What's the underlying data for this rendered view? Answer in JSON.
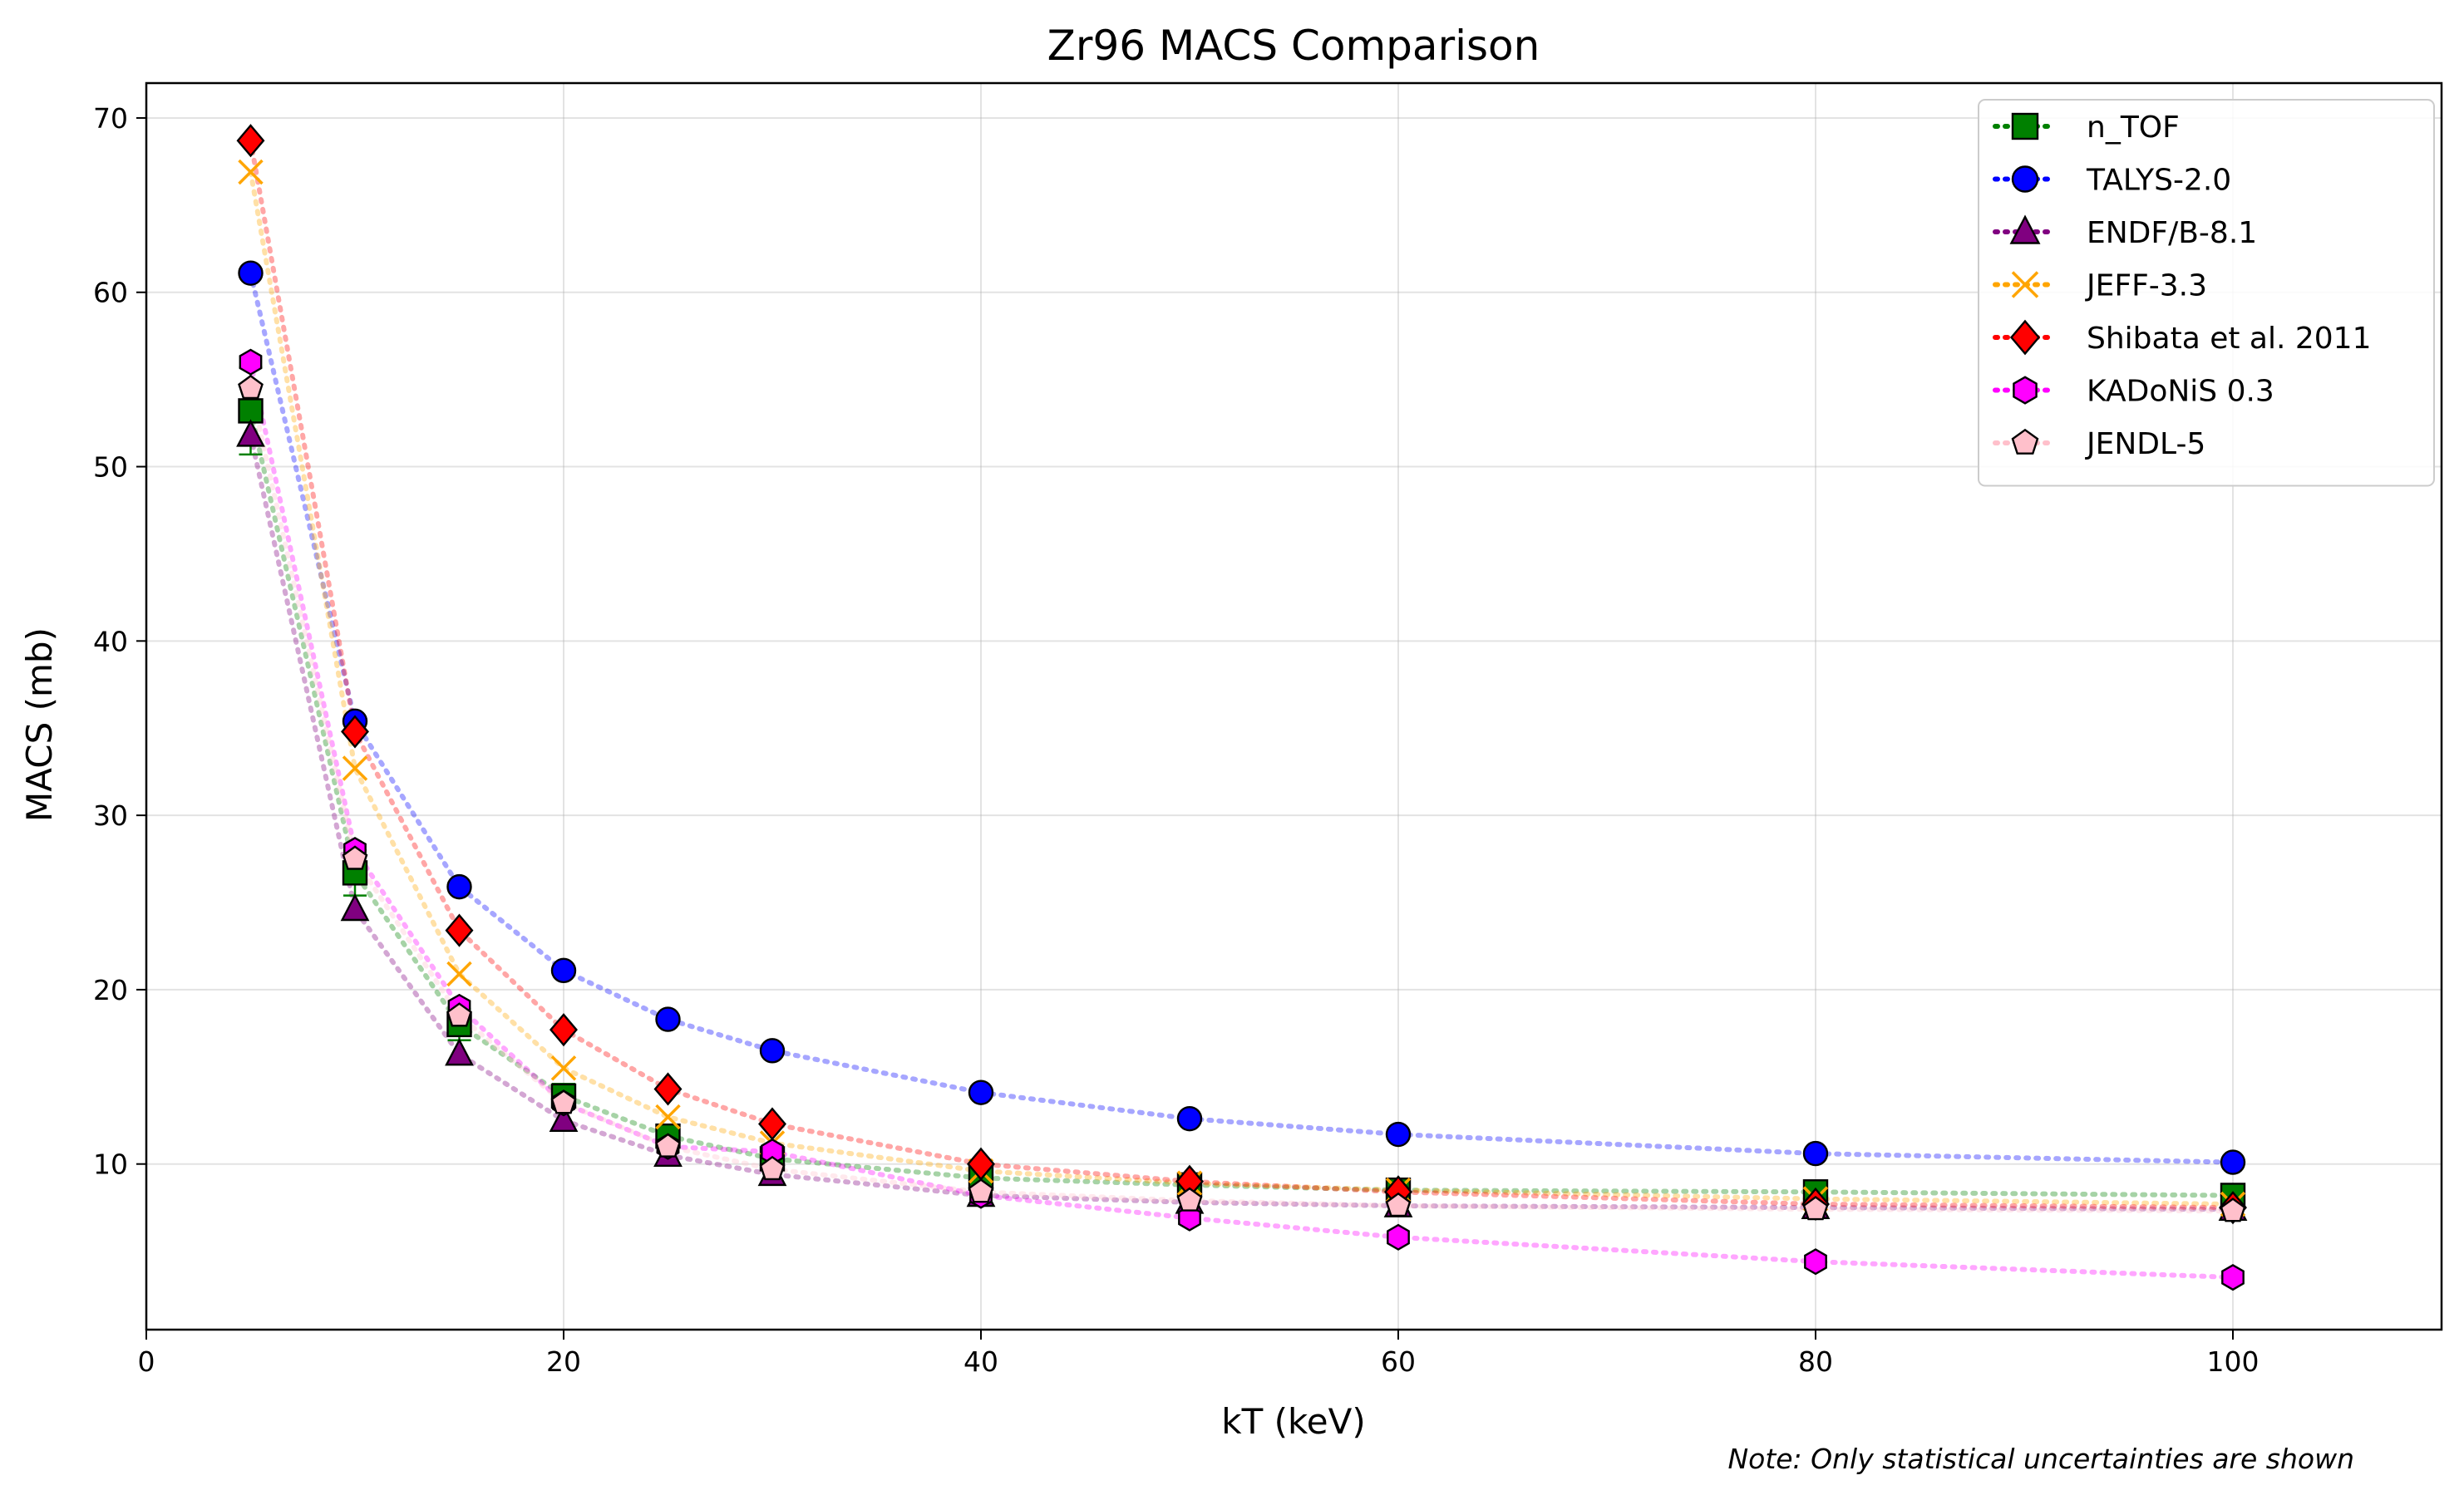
{
  "chart_data": {
    "type": "scatter",
    "title": "Zr96 MACS Comparison",
    "xlabel": "kT (keV)",
    "ylabel": "MACS (mb)",
    "xlim": [
      0,
      110
    ],
    "ylim": [
      0.5,
      72
    ],
    "xticks": [
      0,
      20,
      40,
      60,
      80,
      100
    ],
    "yticks": [
      10,
      20,
      30,
      40,
      50,
      60,
      70
    ],
    "grid": true,
    "legend_position": "top-right",
    "note": "Note: Only statistical uncertainties are shown",
    "series": [
      {
        "name": "n_TOF",
        "marker": "square",
        "color": "#008000",
        "x": [
          5,
          10,
          15,
          20,
          25,
          30,
          40,
          50,
          60,
          80,
          100
        ],
        "y": [
          53.2,
          26.7,
          18.0,
          13.9,
          11.6,
          10.3,
          9.2,
          8.8,
          8.5,
          8.4,
          8.2
        ],
        "err": [
          2.5,
          1.3,
          0.9,
          0.7,
          0.6,
          0.5,
          0.45,
          0.4,
          0.4,
          0.4,
          0.4
        ]
      },
      {
        "name": "TALYS-2.0",
        "marker": "circle",
        "color": "#0000ff",
        "x": [
          5,
          10,
          15,
          20,
          25,
          30,
          40,
          50,
          60,
          80,
          100
        ],
        "y": [
          61.1,
          35.4,
          25.9,
          21.1,
          18.3,
          16.5,
          14.1,
          12.6,
          11.7,
          10.6,
          10.1
        ]
      },
      {
        "name": "ENDF/B-8.1",
        "marker": "triangle",
        "color": "#800080",
        "x": [
          5,
          10,
          15,
          20,
          25,
          30,
          40,
          50,
          60,
          80,
          100
        ],
        "y": [
          51.8,
          24.6,
          16.3,
          12.5,
          10.5,
          9.4,
          8.2,
          7.8,
          7.6,
          7.5,
          7.4
        ]
      },
      {
        "name": "JEFF-3.3",
        "marker": "x",
        "color": "#ffa500",
        "x": [
          5,
          10,
          15,
          20,
          25,
          30,
          40,
          50,
          60,
          80,
          100
        ],
        "y": [
          66.9,
          32.7,
          20.9,
          15.5,
          12.7,
          11.2,
          9.6,
          8.9,
          8.5,
          8.0,
          7.7
        ]
      },
      {
        "name": "Shibata et al. 2011",
        "marker": "diamond",
        "color": "#ff0000",
        "x": [
          5,
          10,
          15,
          20,
          25,
          30,
          40,
          50,
          60,
          80,
          100
        ],
        "y": [
          68.7,
          34.8,
          23.4,
          17.7,
          14.3,
          12.3,
          10.0,
          9.0,
          8.4,
          7.7,
          7.5
        ]
      },
      {
        "name": "KADoNiS 0.3",
        "marker": "hexagon",
        "color": "#ff00ff",
        "x": [
          5,
          10,
          15,
          20,
          25,
          30,
          40,
          50,
          60,
          80,
          100
        ],
        "y": [
          56.0,
          28.0,
          19.0,
          13.5,
          11.0,
          10.7,
          8.2,
          6.9,
          5.8,
          4.4,
          3.5
        ]
      },
      {
        "name": "JENDL-5",
        "marker": "pentagon",
        "color": "#ffc0cb",
        "x": [
          5,
          10,
          15,
          20,
          25,
          30,
          40,
          50,
          60,
          80,
          100
        ],
        "y": [
          54.5,
          27.5,
          18.5,
          13.5,
          11.0,
          9.7,
          8.4,
          7.9,
          7.6,
          7.4,
          7.3
        ]
      }
    ]
  }
}
